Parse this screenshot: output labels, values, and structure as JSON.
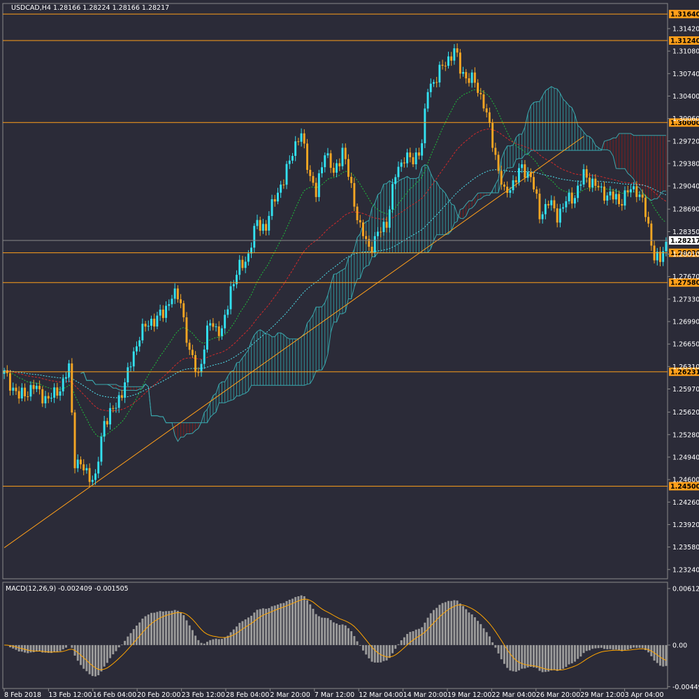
{
  "chart_data": {
    "type": "candlestick",
    "header": "USDCAD,H4  1.28166 1.28224 1.28166 1.28217",
    "macd_label": "MACD(12,26,9) -0.002409 -0.001505",
    "last_price": "1.28217",
    "y_ticks": [
      "1.31420",
      "1.31080",
      "1.30740",
      "1.30400",
      "1.30060",
      "1.29720",
      "1.29380",
      "1.29040",
      "1.28690",
      "1.28350",
      "1.28010",
      "1.27670",
      "1.27330",
      "1.26990",
      "1.26650",
      "1.26310",
      "1.25970",
      "1.25620",
      "1.25280",
      "1.24940",
      "1.24600",
      "1.24260",
      "1.23920",
      "1.23580",
      "1.23240"
    ],
    "ylim": [
      1.231,
      1.318
    ],
    "macd_ticks": [
      "0.006121",
      "0.00",
      "-0.004496"
    ],
    "macd_ylim": [
      -0.0047,
      0.0068
    ],
    "x_ticks": [
      "8 Feb 2018",
      "13 Feb 12:00",
      "16 Feb 04:00",
      "20 Feb 20:00",
      "23 Feb 12:00",
      "28 Feb 04:00",
      "2 Mar 20:00",
      "7 Mar 12:00",
      "12 Mar 04:00",
      "14 Mar 20:00",
      "19 Mar 12:00",
      "22 Mar 04:00",
      "26 Mar 20:00",
      "29 Mar 12:00",
      "3 Apr 04:00"
    ],
    "levels": [
      {
        "label": "1.31640",
        "value": 1.3164
      },
      {
        "label": "1.31240",
        "value": 1.3124
      },
      {
        "label": "1.30000",
        "value": 1.3
      },
      {
        "label": "1.28030",
        "value": 1.2803
      },
      {
        "label": "1.27580",
        "value": 1.2758
      },
      {
        "label": "1.26231",
        "value": 1.26231
      },
      {
        "label": "1.24500",
        "value": 1.245
      }
    ],
    "trendline": {
      "start": {
        "bar": 0,
        "value": 1.2357
      },
      "end": {
        "bar": 197,
        "value": 1.2979
      }
    },
    "anchors": [
      [
        0,
        1.262
      ],
      [
        5,
        1.2585
      ],
      [
        10,
        1.26
      ],
      [
        15,
        1.258
      ],
      [
        20,
        1.2605
      ],
      [
        22,
        1.263
      ],
      [
        24,
        1.249
      ],
      [
        28,
        1.247
      ],
      [
        31,
        1.246
      ],
      [
        34,
        1.255
      ],
      [
        38,
        1.257
      ],
      [
        42,
        1.262
      ],
      [
        46,
        1.268
      ],
      [
        50,
        1.27
      ],
      [
        54,
        1.271
      ],
      [
        57,
        1.274
      ],
      [
        60,
        1.273
      ],
      [
        63,
        1.265
      ],
      [
        66,
        1.262
      ],
      [
        70,
        1.27
      ],
      [
        74,
        1.268
      ],
      [
        77,
        1.275
      ],
      [
        80,
        1.278
      ],
      [
        83,
        1.28
      ],
      [
        86,
        1.285
      ],
      [
        89,
        1.284
      ],
      [
        92,
        1.289
      ],
      [
        95,
        1.291
      ],
      [
        98,
        1.296
      ],
      [
        101,
        1.298
      ],
      [
        104,
        1.292
      ],
      [
        106,
        1.289
      ],
      [
        109,
        1.296
      ],
      [
        112,
        1.292
      ],
      [
        115,
        1.296
      ],
      [
        118,
        1.29
      ],
      [
        121,
        1.284
      ],
      [
        124,
        1.281
      ],
      [
        127,
        1.283
      ],
      [
        130,
        1.285
      ],
      [
        133,
        1.292
      ],
      [
        136,
        1.295
      ],
      [
        139,
        1.294
      ],
      [
        142,
        1.297
      ],
      [
        144,
        1.305
      ],
      [
        147,
        1.307
      ],
      [
        150,
        1.309
      ],
      [
        153,
        1.311
      ],
      [
        155,
        1.308
      ],
      [
        157,
        1.307
      ],
      [
        160,
        1.306
      ],
      [
        163,
        1.303
      ],
      [
        165,
        1.299
      ],
      [
        167,
        1.295
      ],
      [
        170,
        1.289
      ],
      [
        173,
        1.291
      ],
      [
        176,
        1.293
      ],
      [
        179,
        1.292
      ],
      [
        182,
        1.286
      ],
      [
        185,
        1.288
      ],
      [
        188,
        1.286
      ],
      [
        191,
        1.288
      ],
      [
        194,
        1.289
      ],
      [
        197,
        1.292
      ],
      [
        200,
        1.291
      ],
      [
        203,
        1.2895
      ],
      [
        206,
        1.289
      ],
      [
        209,
        1.288
      ],
      [
        212,
        1.2895
      ],
      [
        215,
        1.29
      ],
      [
        217,
        1.288
      ],
      [
        219,
        1.284
      ],
      [
        221,
        1.28
      ],
      [
        223,
        1.279
      ],
      [
        225,
        1.2817
      ]
    ]
  }
}
